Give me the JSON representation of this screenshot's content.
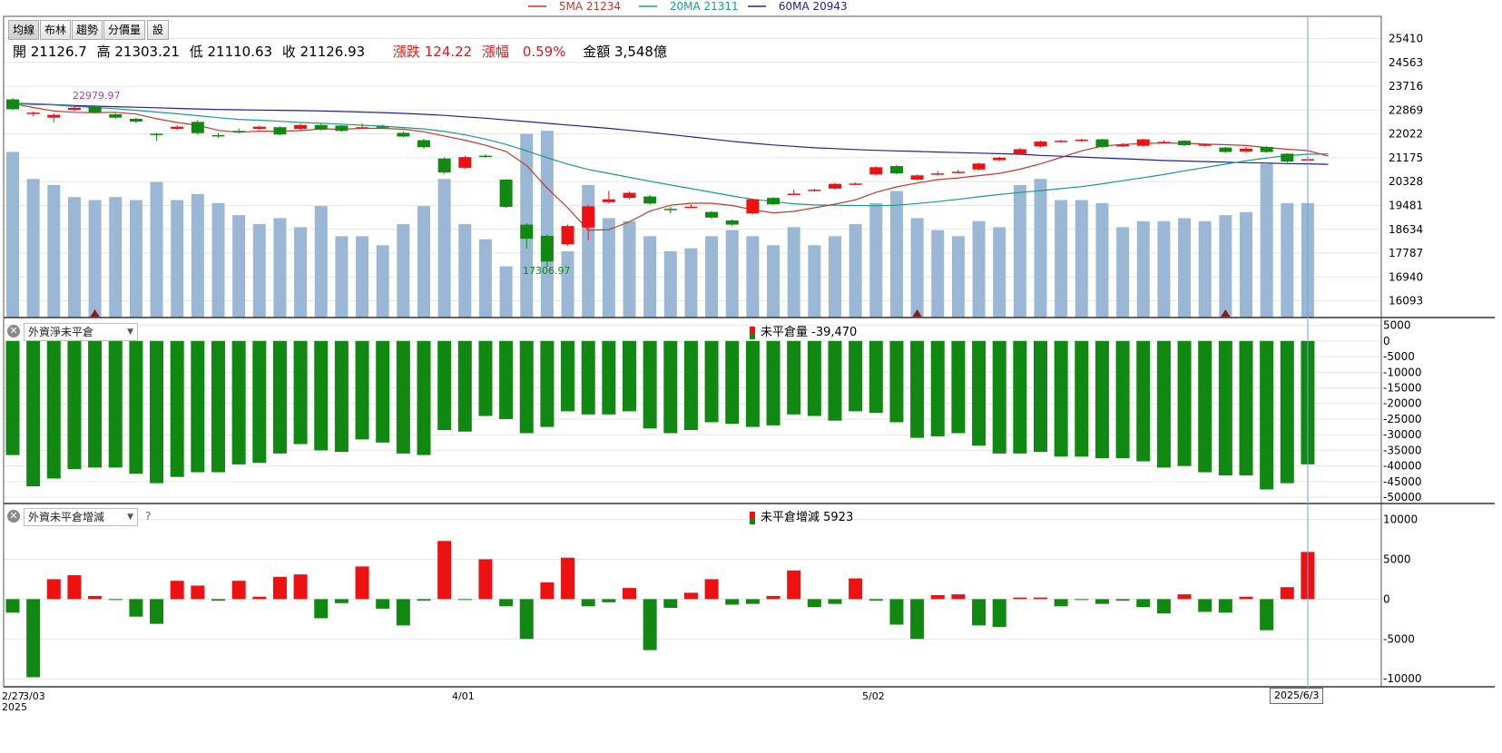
{
  "toolbar": {
    "buttons": [
      "均線",
      "布林",
      "趨勢",
      "分價量",
      "設"
    ]
  },
  "ma_legend": [
    {
      "label": "5MA 21234",
      "color": "#c0392b"
    },
    {
      "label": "20MA 21311",
      "color": "#1a9a8a"
    },
    {
      "label": "60MA 20943",
      "color": "#20209a"
    }
  ],
  "ohlc": {
    "open": "開 21126.7",
    "high": "高 21303.21",
    "low": "低 21110.63",
    "close": "收 21126.93",
    "change": "漲跌 124.22",
    "pct_label": "漲幅",
    "pct": "0.59%",
    "amount": "金額 3,548億"
  },
  "annotations": {
    "max": "22979.97",
    "min": "17306.97"
  },
  "panel2": {
    "selector": "外資淨未平倉",
    "label": "未平倉量 -39,470"
  },
  "panel3": {
    "selector": "外資未平倉增減",
    "help": "?",
    "label": "未平倉增減 5923"
  },
  "x_axis": {
    "first": "2/27",
    "first2": "3/03",
    "year": "2025",
    "mid1": "4/01",
    "mid2": "5/02",
    "cursor": "2025/6/3"
  },
  "colors": {
    "up": "#ee1111",
    "down": "#118811",
    "volume": "#9ab7d6",
    "grid": "#e6e6e6"
  },
  "chart_data": [
    {
      "type": "candlestick",
      "title": "",
      "y_ticks": [
        16093,
        16940,
        17787,
        18634,
        19481,
        20328,
        21175,
        22022,
        22869,
        23716,
        24563,
        25410
      ],
      "ylim": [
        15500,
        26200
      ],
      "candles": [
        {
          "o": 23250,
          "c": 22900,
          "h": 23300,
          "l": 22880
        },
        {
          "o": 22730,
          "c": 22780,
          "h": 22820,
          "l": 22650
        },
        {
          "o": 22600,
          "c": 22700,
          "h": 22750,
          "l": 22420
        },
        {
          "o": 22880,
          "c": 22950,
          "h": 22990,
          "l": 22830
        },
        {
          "o": 22980,
          "c": 22800,
          "h": 23000,
          "l": 22760
        },
        {
          "o": 22720,
          "c": 22600,
          "h": 22760,
          "l": 22560
        },
        {
          "o": 22560,
          "c": 22460,
          "h": 22600,
          "l": 22400
        },
        {
          "o": 22030,
          "c": 22020,
          "h": 22060,
          "l": 21780
        },
        {
          "o": 22200,
          "c": 22280,
          "h": 22330,
          "l": 22160
        },
        {
          "o": 22450,
          "c": 22050,
          "h": 22520,
          "l": 21990
        },
        {
          "o": 21980,
          "c": 21960,
          "h": 22060,
          "l": 21880
        },
        {
          "o": 22130,
          "c": 22120,
          "h": 22220,
          "l": 22050
        },
        {
          "o": 22200,
          "c": 22280,
          "h": 22320,
          "l": 22160
        },
        {
          "o": 22260,
          "c": 22000,
          "h": 22290,
          "l": 21980
        },
        {
          "o": 22200,
          "c": 22340,
          "h": 22380,
          "l": 22160
        },
        {
          "o": 22340,
          "c": 22180,
          "h": 22380,
          "l": 22150
        },
        {
          "o": 22320,
          "c": 22130,
          "h": 22340,
          "l": 22100
        },
        {
          "o": 22250,
          "c": 22260,
          "h": 22400,
          "l": 22200
        },
        {
          "o": 22290,
          "c": 22270,
          "h": 22350,
          "l": 22220
        },
        {
          "o": 22060,
          "c": 21930,
          "h": 22110,
          "l": 21900
        },
        {
          "o": 21800,
          "c": 21550,
          "h": 21850,
          "l": 21500
        },
        {
          "o": 21150,
          "c": 20650,
          "h": 21200,
          "l": 20600
        },
        {
          "o": 20820,
          "c": 21200,
          "h": 21250,
          "l": 20780
        },
        {
          "o": 21250,
          "c": 21240,
          "h": 21300,
          "l": 21180
        },
        {
          "o": 20400,
          "c": 19430,
          "h": 20420,
          "l": 19400
        },
        {
          "o": 18800,
          "c": 18300,
          "h": 18850,
          "l": 17950
        },
        {
          "o": 18400,
          "c": 17490,
          "h": 18450,
          "l": 17300
        },
        {
          "o": 18100,
          "c": 18750,
          "h": 18800,
          "l": 18050
        },
        {
          "o": 18700,
          "c": 19450,
          "h": 19500,
          "l": 18250
        },
        {
          "o": 19600,
          "c": 19700,
          "h": 20000,
          "l": 19550
        },
        {
          "o": 19750,
          "c": 19930,
          "h": 19980,
          "l": 19700
        },
        {
          "o": 19800,
          "c": 19550,
          "h": 19850,
          "l": 19500
        },
        {
          "o": 19360,
          "c": 19330,
          "h": 19430,
          "l": 19200
        },
        {
          "o": 19430,
          "c": 19440,
          "h": 19520,
          "l": 19400
        },
        {
          "o": 19250,
          "c": 19050,
          "h": 19280,
          "l": 19000
        },
        {
          "o": 18950,
          "c": 18800,
          "h": 18990,
          "l": 18760
        },
        {
          "o": 19200,
          "c": 19700,
          "h": 19720,
          "l": 19170
        },
        {
          "o": 19750,
          "c": 19520,
          "h": 19780,
          "l": 19500
        },
        {
          "o": 19880,
          "c": 19900,
          "h": 20050,
          "l": 19850
        },
        {
          "o": 20010,
          "c": 20040,
          "h": 20080,
          "l": 19980
        },
        {
          "o": 20080,
          "c": 20250,
          "h": 20280,
          "l": 20050
        },
        {
          "o": 20230,
          "c": 20260,
          "h": 20300,
          "l": 20200
        },
        {
          "o": 20580,
          "c": 20840,
          "h": 20870,
          "l": 20560
        },
        {
          "o": 20880,
          "c": 20620,
          "h": 20920,
          "l": 20580
        },
        {
          "o": 20400,
          "c": 20550,
          "h": 20580,
          "l": 20380
        },
        {
          "o": 20600,
          "c": 20620,
          "h": 20700,
          "l": 20560
        },
        {
          "o": 20660,
          "c": 20680,
          "h": 20750,
          "l": 20620
        },
        {
          "o": 20760,
          "c": 20970,
          "h": 21000,
          "l": 20730
        },
        {
          "o": 21090,
          "c": 21180,
          "h": 21210,
          "l": 21060
        },
        {
          "o": 21320,
          "c": 21480,
          "h": 21520,
          "l": 21290
        },
        {
          "o": 21580,
          "c": 21750,
          "h": 21780,
          "l": 21550
        },
        {
          "o": 21750,
          "c": 21780,
          "h": 21820,
          "l": 21720
        },
        {
          "o": 21770,
          "c": 21820,
          "h": 21860,
          "l": 21740
        },
        {
          "o": 21830,
          "c": 21560,
          "h": 21850,
          "l": 21530
        },
        {
          "o": 21580,
          "c": 21640,
          "h": 21700,
          "l": 21560
        },
        {
          "o": 21600,
          "c": 21830,
          "h": 21850,
          "l": 21580
        },
        {
          "o": 21700,
          "c": 21740,
          "h": 21790,
          "l": 21680
        },
        {
          "o": 21780,
          "c": 21620,
          "h": 21800,
          "l": 21590
        },
        {
          "o": 21600,
          "c": 21650,
          "h": 21680,
          "l": 21570
        },
        {
          "o": 21540,
          "c": 21380,
          "h": 21560,
          "l": 21350
        },
        {
          "o": 21400,
          "c": 21500,
          "h": 21560,
          "l": 21340
        },
        {
          "o": 21560,
          "c": 21380,
          "h": 21600,
          "l": 21350
        },
        {
          "o": 21320,
          "c": 21040,
          "h": 21340,
          "l": 21000
        },
        {
          "o": 21110,
          "c": 21127,
          "h": 21303,
          "l": 21110
        }
      ],
      "ma5": [
        23100,
        22960,
        22840,
        22790,
        22780,
        22790,
        22730,
        22560,
        22430,
        22330,
        22150,
        22080,
        22120,
        22120,
        22140,
        22200,
        22190,
        22220,
        22220,
        22190,
        22100,
        21950,
        21800,
        21620,
        21400,
        20900,
        20100,
        19400,
        18600,
        18620,
        18900,
        19280,
        19490,
        19560,
        19560,
        19480,
        19330,
        19220,
        19270,
        19400,
        19530,
        19680,
        19950,
        20140,
        20280,
        20400,
        20460,
        20540,
        20620,
        20770,
        20960,
        21190,
        21420,
        21590,
        21650,
        21680,
        21700,
        21690,
        21660,
        21640,
        21610,
        21540,
        21480,
        21430,
        21234
      ],
      "ma20": [
        23100,
        23070,
        23050,
        23000,
        22960,
        22920,
        22860,
        22800,
        22740,
        22670,
        22600,
        22540,
        22510,
        22470,
        22430,
        22400,
        22370,
        22330,
        22300,
        22250,
        22200,
        22110,
        21990,
        21840,
        21650,
        21420,
        21180,
        20950,
        20760,
        20620,
        20480,
        20340,
        20210,
        20080,
        19950,
        19820,
        19700,
        19620,
        19540,
        19500,
        19490,
        19480,
        19470,
        19490,
        19550,
        19620,
        19700,
        19790,
        19870,
        19940,
        20010,
        20080,
        20150,
        20250,
        20360,
        20470,
        20580,
        20710,
        20830,
        20950,
        21070,
        21170,
        21250,
        21300,
        21311
      ],
      "ma60": [
        23110,
        23090,
        23060,
        23030,
        23010,
        22990,
        22970,
        22950,
        22930,
        22910,
        22890,
        22880,
        22870,
        22860,
        22850,
        22840,
        22820,
        22800,
        22780,
        22750,
        22720,
        22680,
        22630,
        22580,
        22520,
        22460,
        22400,
        22340,
        22280,
        22220,
        22150,
        22080,
        22000,
        21920,
        21840,
        21760,
        21690,
        21630,
        21580,
        21530,
        21500,
        21470,
        21440,
        21420,
        21400,
        21380,
        21360,
        21340,
        21320,
        21300,
        21260,
        21230,
        21200,
        21170,
        21140,
        21110,
        21080,
        21060,
        21040,
        21020,
        21000,
        20990,
        20970,
        20960,
        20943
      ],
      "volume_scale": [
        0,
        1
      ],
      "volume": [
        0.55,
        0.46,
        0.44,
        0.4,
        0.39,
        0.4,
        0.39,
        0.45,
        0.39,
        0.41,
        0.38,
        0.34,
        0.31,
        0.33,
        0.3,
        0.37,
        0.27,
        0.27,
        0.24,
        0.31,
        0.37,
        0.46,
        0.31,
        0.26,
        0.17,
        0.61,
        0.62,
        0.22,
        0.44,
        0.33,
        0.32,
        0.27,
        0.22,
        0.23,
        0.27,
        0.29,
        0.27,
        0.24,
        0.3,
        0.24,
        0.27,
        0.31,
        0.38,
        0.42,
        0.33,
        0.29,
        0.27,
        0.32,
        0.3,
        0.44,
        0.46,
        0.39,
        0.39,
        0.38,
        0.3,
        0.32,
        0.32,
        0.33,
        0.32,
        0.34,
        0.35,
        0.51,
        0.38,
        0.38
      ],
      "markers": [
        4,
        44,
        59
      ]
    },
    {
      "type": "bar",
      "title": "未平倉量",
      "y_ticks": [
        5000,
        0,
        -5000,
        -10000,
        -15000,
        -20000,
        -25000,
        -30000,
        -35000,
        -40000,
        -45000,
        -50000
      ],
      "ylim": [
        -52000,
        7500
      ],
      "values": [
        -36500,
        -46500,
        -44000,
        -41000,
        -40500,
        -40500,
        -42500,
        -45500,
        -43500,
        -42000,
        -42000,
        -39500,
        -39000,
        -36000,
        -33000,
        -35000,
        -35500,
        -31500,
        -32500,
        -36000,
        -36500,
        -28500,
        -29000,
        -24000,
        -25000,
        -29500,
        -27500,
        -22500,
        -23500,
        -23500,
        -22500,
        -28000,
        -29500,
        -28500,
        -26000,
        -26500,
        -27500,
        -27000,
        -23500,
        -24000,
        -25500,
        -22500,
        -23000,
        -26000,
        -31000,
        -30500,
        -29500,
        -33500,
        -36000,
        -36000,
        -35500,
        -37000,
        -37000,
        -37500,
        -37500,
        -38500,
        -40500,
        -40000,
        -42000,
        -43000,
        -43000,
        -47500,
        -45500,
        -39470
      ]
    },
    {
      "type": "bar",
      "title": "未平倉增減",
      "y_ticks": [
        10000,
        5000,
        0,
        -5000,
        -10000
      ],
      "ylim": [
        -11000,
        12000
      ],
      "values": [
        -1700,
        -9800,
        2500,
        3000,
        400,
        -100,
        -2200,
        -3100,
        2300,
        1700,
        -200,
        2300,
        300,
        2800,
        3100,
        -2400,
        -500,
        4100,
        -1200,
        -3300,
        -200,
        7300,
        -100,
        5000,
        -900,
        -5000,
        2100,
        5200,
        -900,
        -400,
        1400,
        -6400,
        -1100,
        800,
        2500,
        -700,
        -600,
        400,
        3600,
        -1000,
        -600,
        2600,
        -200,
        -3200,
        -5000,
        500,
        600,
        -3300,
        -3500,
        200,
        200,
        -900,
        -100,
        -600,
        -200,
        -1000,
        -1800,
        600,
        -1600,
        -1700,
        300,
        -3900,
        1500,
        5923
      ]
    }
  ]
}
